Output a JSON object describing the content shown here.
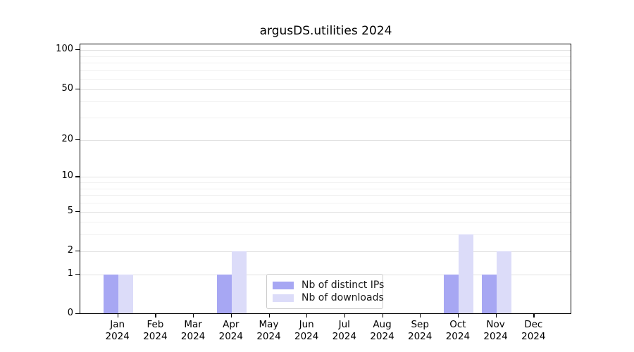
{
  "chart_data": {
    "type": "bar",
    "title": "argusDS.utilities 2024",
    "categories": [
      "Jan",
      "Feb",
      "Mar",
      "Apr",
      "May",
      "Jun",
      "Jul",
      "Aug",
      "Sep",
      "Oct",
      "Nov",
      "Dec"
    ],
    "category_year": "2024",
    "series": [
      {
        "name": "Nb of distinct IPs",
        "color": "#a7a7f3",
        "values": [
          1,
          0,
          0,
          1,
          0,
          0,
          0,
          0,
          0,
          1,
          1,
          0
        ]
      },
      {
        "name": "Nb of downloads",
        "color": "#dcdcf9",
        "values": [
          1,
          0,
          0,
          2,
          0,
          0,
          0,
          0,
          0,
          3,
          2,
          0
        ]
      }
    ],
    "xlabel": "",
    "ylabel": "",
    "y_axis": {
      "scale": "log10(value+1)",
      "tick_labels": [
        "100",
        "50",
        "20",
        "10",
        "5",
        "2",
        "1",
        "0"
      ],
      "major_ticks": [
        100,
        50,
        20,
        10,
        5,
        2,
        1,
        0
      ],
      "minor_gridlines": [
        3,
        4,
        6,
        7,
        8,
        9,
        30,
        40,
        60,
        70,
        80,
        90
      ],
      "min": 0,
      "max": 100
    },
    "grid": "horizontal",
    "legend": {
      "position": "bottom-center",
      "items": [
        "Nb of distinct IPs",
        "Nb of downloads"
      ]
    },
    "colors": {
      "major_grid": "#e2e2e2",
      "minor_grid": "#f1f1f1",
      "spine": "#000000",
      "background": "#ffffff"
    }
  }
}
